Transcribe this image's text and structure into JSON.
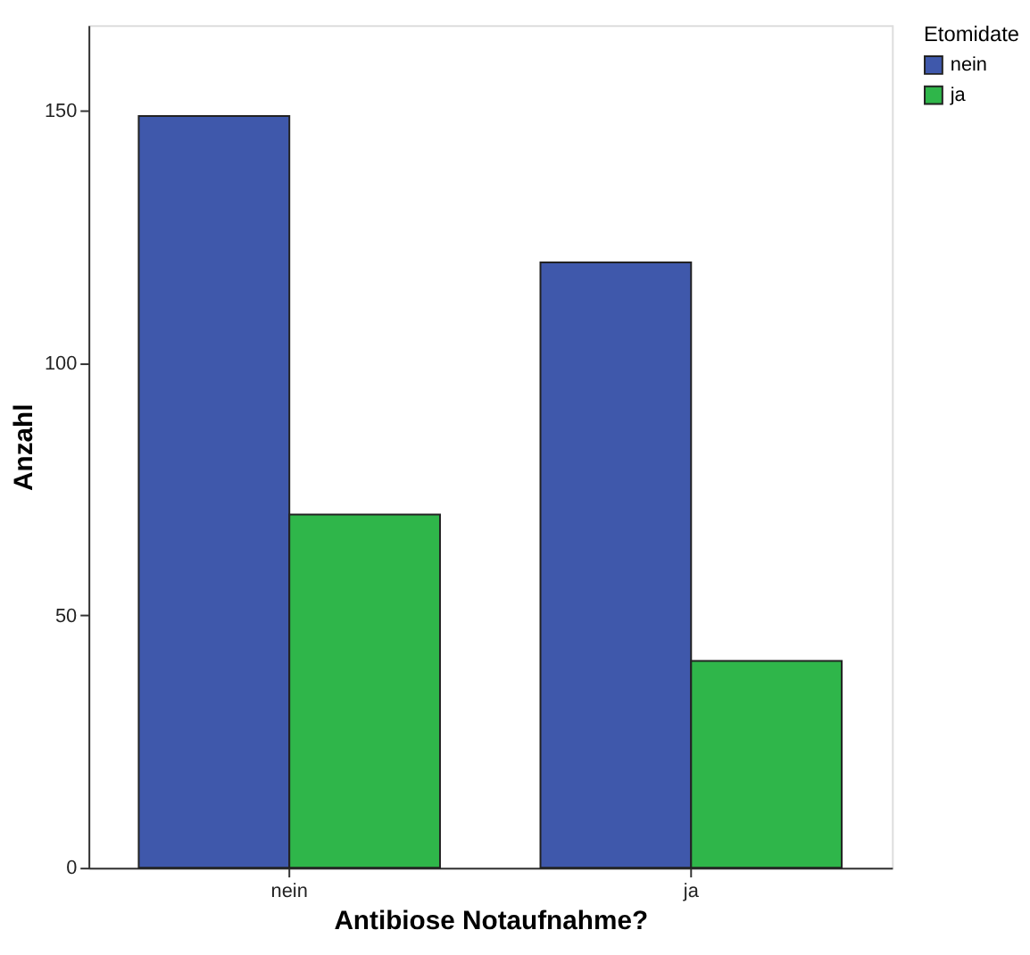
{
  "chart_data": {
    "type": "bar",
    "xlabel": "Antibiose Notaufnahme?",
    "ylabel": "Anzahl",
    "legend_title": "Etomidate",
    "categories": [
      "nein",
      "ja"
    ],
    "series": [
      {
        "name": "nein",
        "color": "#3f58ab",
        "values": [
          149,
          120
        ]
      },
      {
        "name": "ja",
        "color": "#2fb64a",
        "values": [
          70,
          41
        ]
      }
    ],
    "ylim": [
      0,
      167
    ],
    "yticks": [
      0,
      50,
      100,
      150
    ],
    "grid": false,
    "legend": "top right"
  }
}
